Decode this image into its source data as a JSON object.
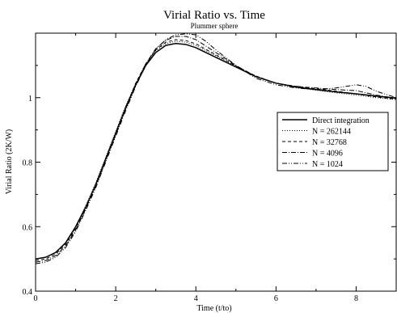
{
  "chart_data": {
    "type": "line",
    "title": "Virial Ratio vs. Time",
    "subtitle": "Plummer sphere",
    "xlabel": "Time (t/to)",
    "ylabel": "Virial Ratio (2K/W)",
    "xlim": [
      0,
      9
    ],
    "ylim": [
      0.4,
      1.2
    ],
    "xticks": [
      0,
      2,
      4,
      6,
      8
    ],
    "yticks": [
      0.4,
      0.6,
      0.8,
      1.0
    ],
    "ytick_labels": [
      "0.4",
      "0.6",
      "0.8",
      "1"
    ],
    "xtick_labels": [
      "0",
      "2",
      "4",
      "6",
      "8"
    ],
    "grid": false,
    "legend_position": "right",
    "series": [
      {
        "name": "Direct integration",
        "style": "solid",
        "x": [
          0,
          0.25,
          0.5,
          0.75,
          1.0,
          1.25,
          1.5,
          1.75,
          2.0,
          2.25,
          2.5,
          2.75,
          3.0,
          3.25,
          3.5,
          3.75,
          4.0,
          4.5,
          5.0,
          5.5,
          6.0,
          6.5,
          7.0,
          7.5,
          8.0,
          8.5,
          9.0
        ],
        "y": [
          0.5,
          0.505,
          0.52,
          0.55,
          0.6,
          0.66,
          0.73,
          0.81,
          0.89,
          0.97,
          1.04,
          1.1,
          1.14,
          1.162,
          1.168,
          1.165,
          1.155,
          1.125,
          1.095,
          1.065,
          1.045,
          1.033,
          1.025,
          1.018,
          1.012,
          1.005,
          0.998
        ]
      },
      {
        "name": "N = 262144",
        "style": "dotted",
        "x": [
          0,
          0.25,
          0.5,
          0.75,
          1.0,
          1.25,
          1.5,
          1.75,
          2.0,
          2.25,
          2.5,
          2.75,
          3.0,
          3.25,
          3.5,
          3.75,
          4.0,
          4.5,
          5.0,
          5.5,
          6.0,
          6.5,
          7.0,
          7.5,
          8.0,
          8.5,
          9.0
        ],
        "y": [
          0.5,
          0.505,
          0.52,
          0.55,
          0.6,
          0.665,
          0.735,
          0.815,
          0.895,
          0.975,
          1.045,
          1.105,
          1.145,
          1.168,
          1.175,
          1.172,
          1.162,
          1.13,
          1.098,
          1.067,
          1.045,
          1.032,
          1.023,
          1.015,
          1.008,
          1.0,
          0.994
        ]
      },
      {
        "name": "N = 32768",
        "style": "dashed",
        "x": [
          0,
          0.25,
          0.5,
          0.75,
          1.0,
          1.25,
          1.5,
          1.75,
          2.0,
          2.25,
          2.5,
          2.75,
          3.0,
          3.25,
          3.5,
          3.75,
          4.0,
          4.5,
          5.0,
          5.5,
          6.0,
          6.5,
          7.0,
          7.5,
          8.0,
          8.5,
          9.0
        ],
        "y": [
          0.495,
          0.5,
          0.515,
          0.545,
          0.595,
          0.66,
          0.73,
          0.81,
          0.89,
          0.97,
          1.045,
          1.105,
          1.148,
          1.172,
          1.18,
          1.177,
          1.167,
          1.133,
          1.098,
          1.067,
          1.045,
          1.035,
          1.028,
          1.02,
          1.012,
          1.002,
          0.995
        ]
      },
      {
        "name": "N = 4096",
        "style": "dashdot",
        "x": [
          0,
          0.25,
          0.5,
          0.75,
          1.0,
          1.25,
          1.5,
          1.75,
          2.0,
          2.25,
          2.5,
          2.75,
          3.0,
          3.25,
          3.5,
          3.75,
          4.0,
          4.5,
          5.0,
          5.5,
          6.0,
          6.5,
          7.0,
          7.5,
          8.0,
          8.5,
          9.0
        ],
        "y": [
          0.49,
          0.495,
          0.51,
          0.54,
          0.59,
          0.655,
          0.725,
          0.805,
          0.885,
          0.965,
          1.04,
          1.105,
          1.152,
          1.178,
          1.19,
          1.19,
          1.18,
          1.14,
          1.1,
          1.065,
          1.045,
          1.035,
          1.03,
          1.025,
          1.022,
          1.008,
          0.998
        ]
      },
      {
        "name": "N = 1024",
        "style": "dashdotdot",
        "x": [
          0,
          0.25,
          0.5,
          0.75,
          1.0,
          1.25,
          1.5,
          1.75,
          2.0,
          2.25,
          2.5,
          2.75,
          3.0,
          3.25,
          3.5,
          3.75,
          4.0,
          4.25,
          4.5,
          5.0,
          5.5,
          6.0,
          6.5,
          7.0,
          7.5,
          8.0,
          8.25,
          8.5,
          9.0
        ],
        "y": [
          0.485,
          0.49,
          0.505,
          0.535,
          0.585,
          0.65,
          0.72,
          0.8,
          0.88,
          0.96,
          1.035,
          1.1,
          1.15,
          1.18,
          1.195,
          1.198,
          1.195,
          1.175,
          1.148,
          1.1,
          1.06,
          1.04,
          1.03,
          1.025,
          1.03,
          1.04,
          1.035,
          1.02,
          1.0
        ]
      }
    ]
  }
}
